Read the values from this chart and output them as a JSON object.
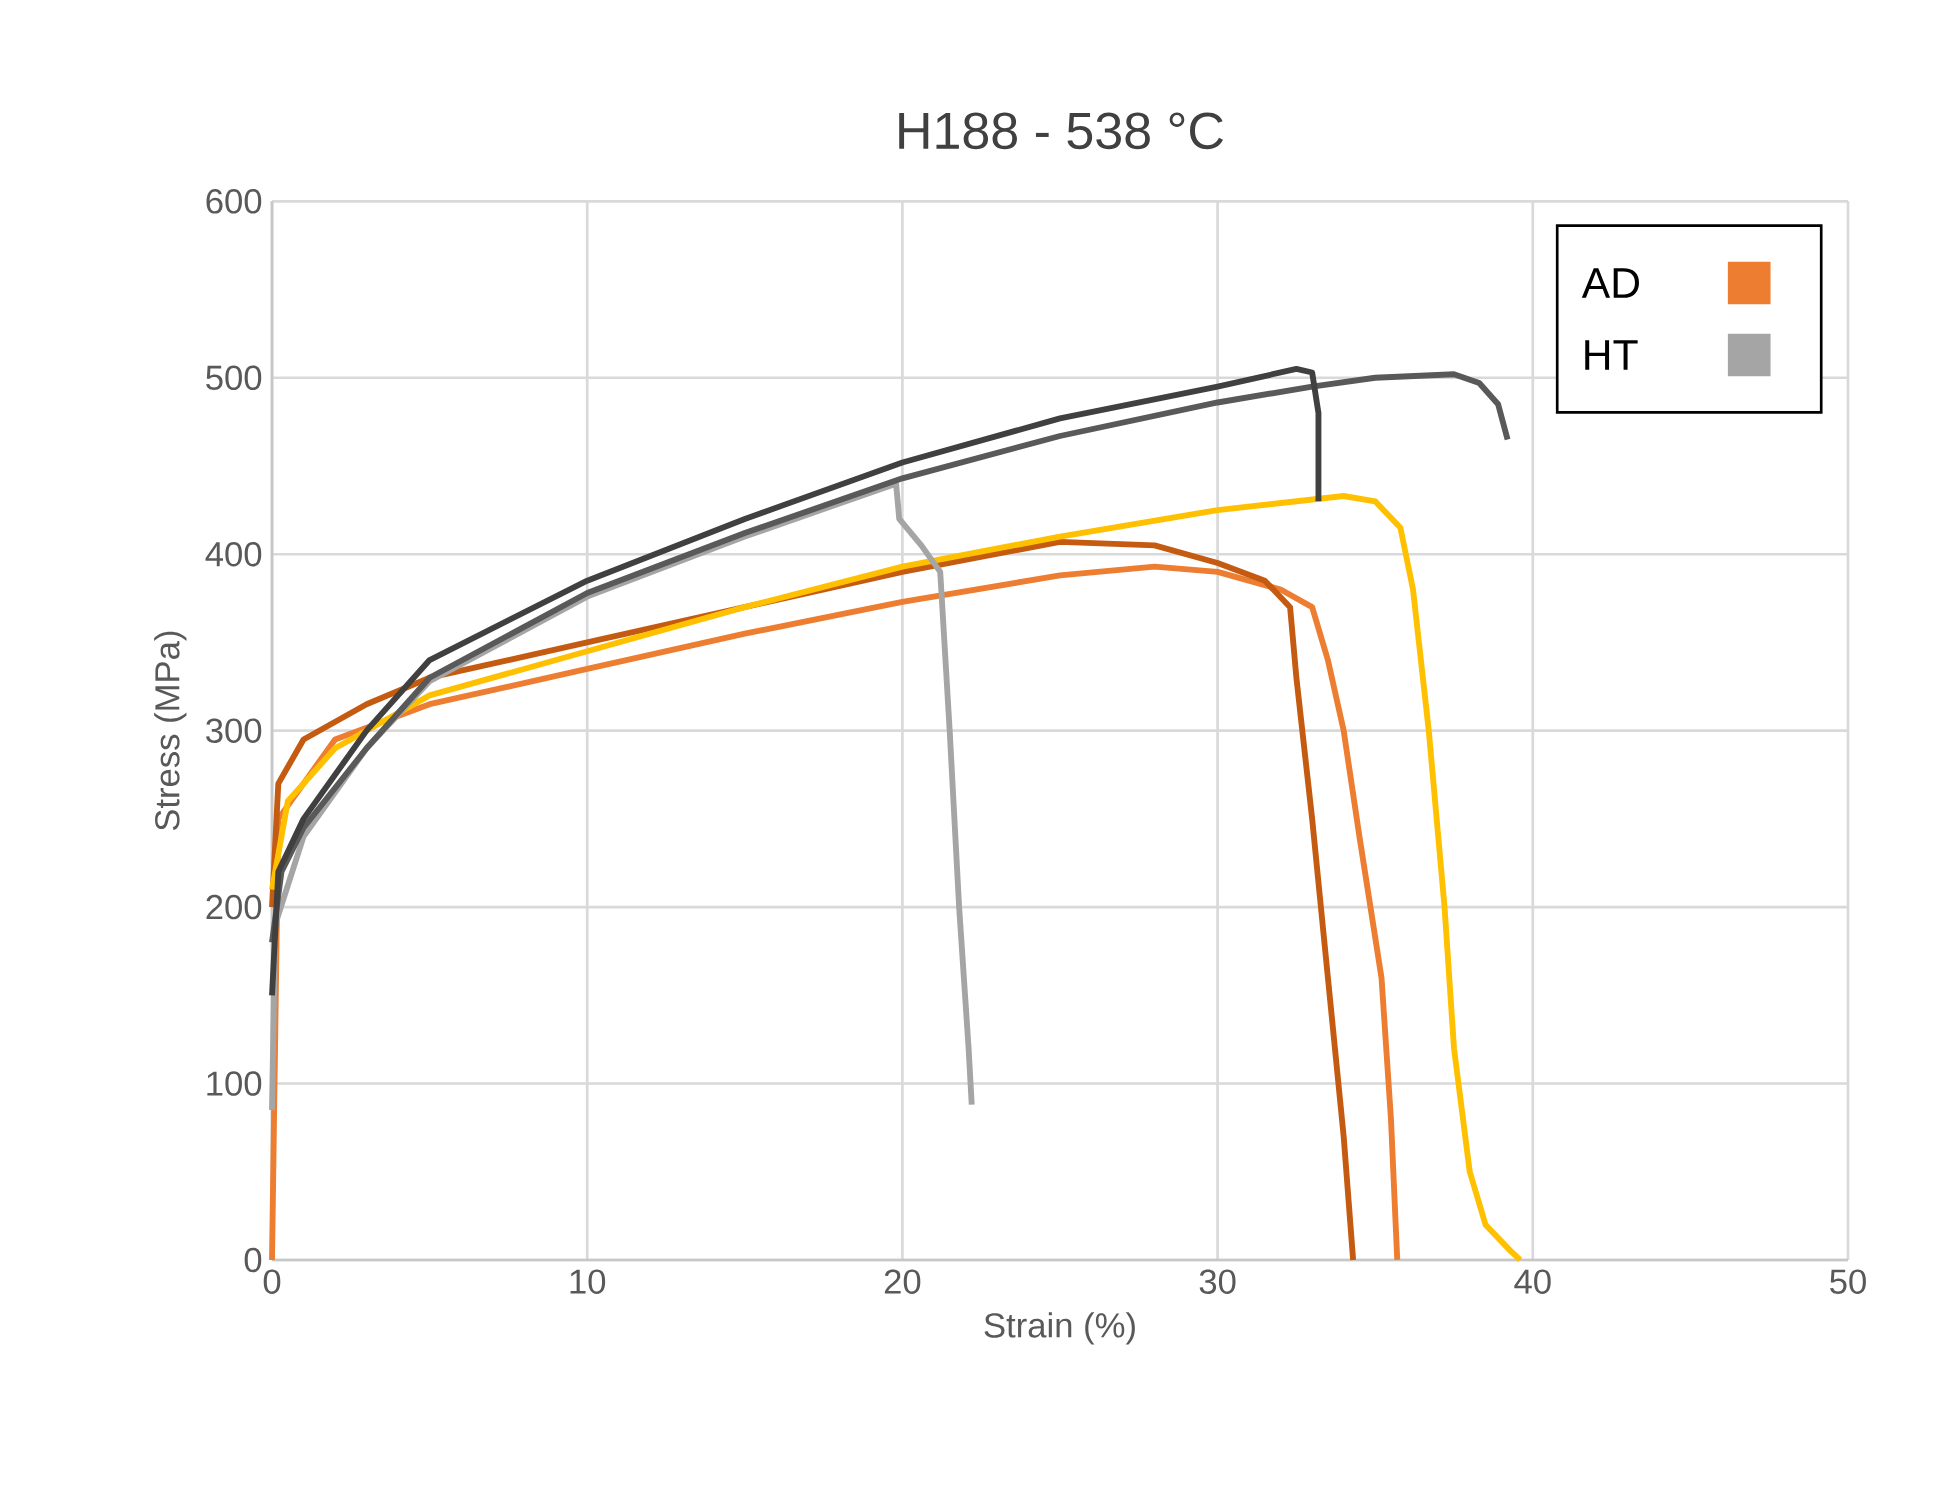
{
  "chart_data": {
    "type": "line",
    "title": "H188 - 538 °C",
    "xlabel": "Strain (%)",
    "ylabel": "Stress (MPa)",
    "xlim": [
      0,
      50
    ],
    "ylim": [
      0,
      600
    ],
    "xticks": [
      0,
      10,
      20,
      30,
      40,
      50
    ],
    "yticks": [
      0,
      100,
      200,
      300,
      400,
      500,
      600
    ],
    "grid": true,
    "legend": "top right",
    "marker": "none",
    "line_style": "solid",
    "series": [
      {
        "name": "AD",
        "color": "#ed7d31",
        "x": [
          0,
          0.2,
          2,
          5,
          10,
          15,
          20,
          25,
          28,
          30,
          32,
          33,
          33.5,
          34,
          34.5,
          35.2,
          35.5,
          35.7
        ],
        "values": [
          0,
          250,
          295,
          315,
          335,
          355,
          373,
          388,
          393,
          390,
          380,
          370,
          340,
          300,
          240,
          160,
          80,
          0
        ]
      },
      {
        "color": "#c55a11",
        "x": [
          0,
          0.2,
          1,
          3,
          5,
          10,
          15,
          20,
          25,
          28,
          30,
          31.5,
          32.3,
          32.5,
          33,
          33.5,
          34,
          34.3
        ],
        "values": [
          200,
          270,
          295,
          315,
          330,
          350,
          370,
          390,
          407,
          405,
          395,
          385,
          370,
          330,
          250,
          160,
          70,
          0
        ]
      },
      {
        "color": "#ffc000",
        "x": [
          0,
          0.5,
          2,
          5,
          10,
          15,
          20,
          25,
          30,
          34,
          35,
          35.8,
          36.2,
          36.7,
          37.2,
          37.5,
          38,
          38.5,
          39.3,
          39.6
        ],
        "values": [
          210,
          260,
          290,
          320,
          345,
          370,
          393,
          410,
          425,
          433,
          430,
          415,
          380,
          300,
          200,
          120,
          50,
          20,
          5,
          0
        ]
      },
      {
        "name": "HT",
        "color": "#a5a5a5",
        "x": [
          0,
          0.1,
          1,
          3,
          5,
          10,
          15,
          19.8,
          19.9,
          20.6,
          21.2,
          21.5,
          21.8,
          22.1,
          22.2
        ],
        "values": [
          85,
          190,
          240,
          290,
          328,
          376,
          410,
          440,
          420,
          405,
          390,
          300,
          200,
          120,
          88
        ]
      },
      {
        "color": "#595959",
        "x": [
          0,
          0.3,
          1,
          3,
          5,
          10,
          15,
          20,
          25,
          30,
          33,
          35,
          37.5,
          38.3,
          38.9,
          39.2
        ],
        "values": [
          180,
          220,
          245,
          290,
          330,
          378,
          412,
          443,
          467,
          486,
          495,
          500,
          502,
          497,
          485,
          465
        ]
      },
      {
        "color": "#404040",
        "x": [
          0,
          0.2,
          1,
          3,
          5,
          10,
          15,
          20,
          25,
          30,
          32.5,
          33,
          33.2,
          33.2
        ],
        "values": [
          150,
          220,
          250,
          300,
          340,
          385,
          420,
          452,
          477,
          495,
          505,
          503,
          480,
          430
        ]
      }
    ]
  }
}
